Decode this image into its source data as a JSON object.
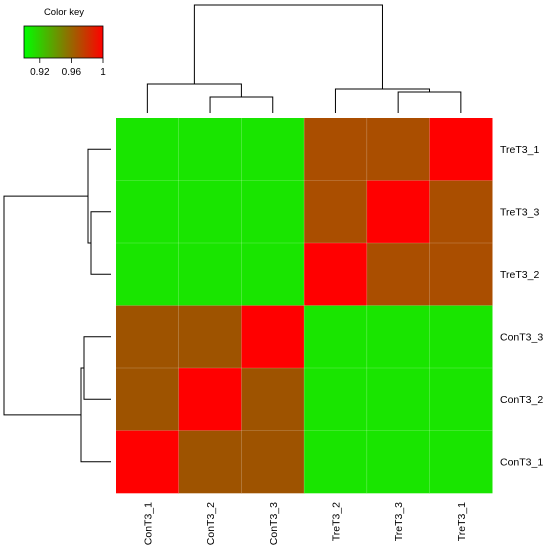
{
  "chart_data": {
    "type": "heatmap",
    "color_key": {
      "title": "Color key",
      "ticks": [
        0.92,
        0.96,
        1
      ],
      "tick_labels": [
        "0.92",
        "0.96",
        "1"
      ],
      "range": [
        0.9,
        1.0
      ],
      "low_color": "#00ff00",
      "high_color": "#ff0000"
    },
    "columns": [
      "ConT3_1",
      "ConT3_2",
      "ConT3_3",
      "TreT3_2",
      "TreT3_3",
      "TreT3_1"
    ],
    "rows": [
      "TreT3_1",
      "TreT3_3",
      "TreT3_2",
      "ConT3_3",
      "ConT3_2",
      "ConT3_1"
    ],
    "values": [
      [
        0.91,
        0.91,
        0.91,
        0.975,
        0.975,
        1.0
      ],
      [
        0.91,
        0.91,
        0.91,
        0.975,
        1.0,
        0.975
      ],
      [
        0.91,
        0.91,
        0.91,
        1.0,
        0.975,
        0.975
      ],
      [
        0.965,
        0.965,
        1.0,
        0.91,
        0.91,
        0.91
      ],
      [
        0.965,
        1.0,
        0.965,
        0.91,
        0.91,
        0.91
      ],
      [
        1.0,
        0.965,
        0.965,
        0.91,
        0.91,
        0.91
      ]
    ],
    "column_dendrogram": "((ConT3_1,(ConT3_2,ConT3_3)),(TreT3_2,(TreT3_3,TreT3_1)))",
    "row_dendrogram": "(((TreT3_1,(TreT3_3,TreT3_2))),(ConT3_1,(ConT3_2,ConT3_3)))",
    "grid": false
  }
}
